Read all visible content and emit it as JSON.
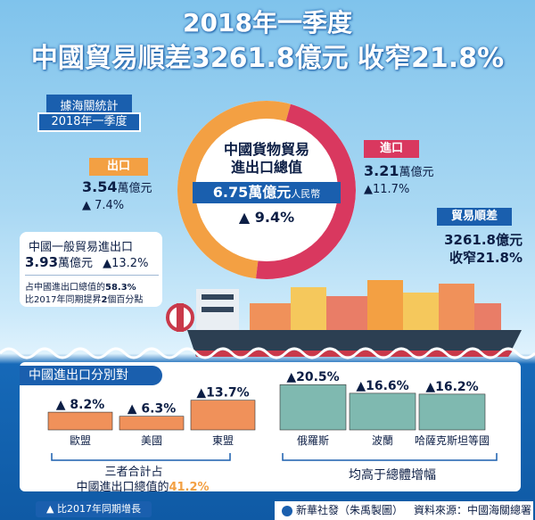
{
  "header": {
    "title": "2018年一季度",
    "subtitle": "中國貿易順差3261.8億元 收窄21.8%"
  },
  "source_box": {
    "label": "據海關統計",
    "period": "2018年一季度"
  },
  "export": {
    "tag": "出口",
    "value": "3.54",
    "unit": "萬億元",
    "change": "▲ 7.4%"
  },
  "import": {
    "tag": "進口",
    "value": "3.21",
    "unit": "萬億元",
    "change": "▲11.7%"
  },
  "center": {
    "title_line1": "中國貨物貿易",
    "title_line2": "進出口總值",
    "total_value": "6.75萬億元",
    "total_suffix": "人民幣",
    "change": "▲ 9.4%"
  },
  "surplus": {
    "tag": "貿易順差",
    "value": "3261.8億元",
    "change": "收窄21.8%"
  },
  "general_trade": {
    "title": "中國一般貿易進出口",
    "value": "3.93",
    "unit": "萬億元",
    "change": "▲13.2%",
    "note1_prefix": "占中國進出口總值的",
    "note1_value": "58.3%",
    "note2_prefix": "比2017年同期提昇",
    "note2_value": "2",
    "note2_suffix": "個百分點"
  },
  "partners_panel": {
    "title": "中國進出口分別對",
    "left_note_line1": "三者合計占",
    "left_note_line2_prefix": "中國進出口總值的",
    "left_note_line2_value": "41.2%",
    "right_note": "均高于總體增幅"
  },
  "footer": {
    "legend": "▲ 比2017年同期增長",
    "credit": "新華社發（朱禹製圖）",
    "source": "資料來源：中國海關總署"
  },
  "colors": {
    "export": "#f3a043",
    "import": "#d9385f",
    "navy": "#0c1e45",
    "accent_blue": "#1a5fae",
    "bar_orange": "#f0915a",
    "bar_teal": "#7fb9b0"
  },
  "chart_data": [
    {
      "type": "pie",
      "categories": [
        "出口",
        "進口"
      ],
      "values": [
        3.54,
        3.21
      ],
      "unit": "萬億元"
    },
    {
      "type": "bar",
      "categories": [
        "歐盟",
        "美國",
        "東盟"
      ],
      "values": [
        8.2,
        6.3,
        13.7
      ],
      "labels": [
        "▲ 8.2%",
        "▲ 6.3%",
        "▲13.7%"
      ],
      "ylim": [
        0,
        14
      ]
    },
    {
      "type": "bar",
      "categories": [
        "俄羅斯",
        "波蘭",
        "哈薩克斯坦等國"
      ],
      "values": [
        20.5,
        16.6,
        16.2
      ],
      "labels": [
        "▲20.5%",
        "▲16.6%",
        "▲16.2%"
      ],
      "ylim": [
        0,
        21
      ]
    }
  ]
}
